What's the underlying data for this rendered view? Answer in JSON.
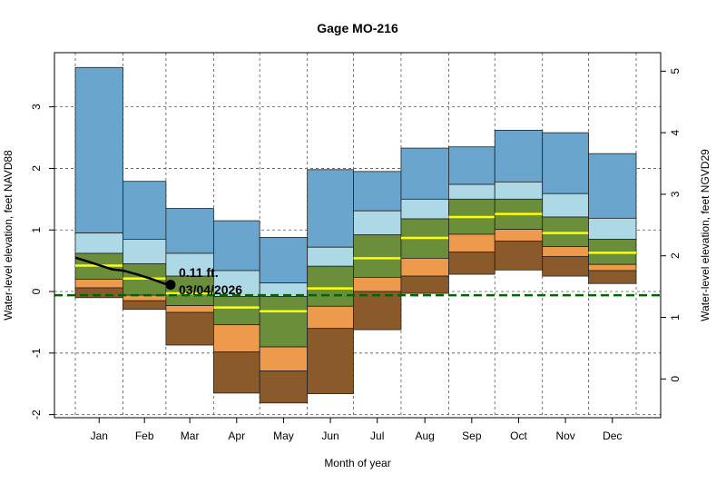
{
  "chart_data": {
    "type": "area",
    "title": "Gage MO-216",
    "xlabel": "Month of year",
    "ylabel": "Water-level elevation, feet NAVD88",
    "ylabel_right": "Water-level elevation, feet NGVD29",
    "ylim": [
      -2.05,
      3.88
    ],
    "yticks": [
      -2,
      -1,
      0,
      1,
      2,
      3
    ],
    "yticks_right": [
      0,
      1,
      2,
      3,
      4,
      5
    ],
    "right_axis_offset": 1.42,
    "grid": true,
    "categories": [
      "Jan",
      "Feb",
      "Mar",
      "Apr",
      "May",
      "Jun",
      "Jul",
      "Aug",
      "Sep",
      "Oct",
      "Nov",
      "Dec"
    ],
    "month_start_day": [
      1,
      32,
      60,
      91,
      121,
      152,
      182,
      213,
      244,
      274,
      305,
      335,
      366
    ],
    "bands": {
      "max": [
        3.64,
        1.79,
        1.35,
        1.15,
        0.88,
        1.98,
        1.95,
        2.33,
        2.35,
        2.62,
        2.58,
        2.24
      ],
      "p90": [
        0.95,
        0.85,
        0.62,
        0.34,
        0.14,
        0.72,
        1.31,
        1.5,
        1.74,
        1.78,
        1.59,
        1.19
      ],
      "p75": [
        0.62,
        0.45,
        0.25,
        -0.08,
        -0.08,
        0.41,
        0.92,
        1.18,
        1.5,
        1.5,
        1.21,
        0.85
      ],
      "median": [
        0.42,
        0.21,
        -0.03,
        -0.26,
        -0.32,
        0.05,
        0.54,
        0.87,
        1.21,
        1.26,
        0.95,
        0.63
      ],
      "p25": [
        0.2,
        -0.06,
        -0.23,
        -0.54,
        -0.9,
        -0.24,
        0.23,
        0.54,
        0.93,
        1.01,
        0.73,
        0.44
      ],
      "p10": [
        0.06,
        -0.15,
        -0.34,
        -0.98,
        -1.29,
        -0.6,
        0.0,
        0.25,
        0.64,
        0.82,
        0.57,
        0.34
      ],
      "min": [
        -0.1,
        -0.29,
        -0.87,
        -1.65,
        -1.81,
        -1.66,
        -0.62,
        -0.03,
        0.28,
        0.35,
        0.25,
        0.13
      ]
    },
    "band_colors": {
      "max": "#6aa5cd",
      "p90": "#add8e6",
      "p75": "#6b8e3a",
      "p25": "#ee9a4d",
      "p10": "#8b5a2b",
      "median": "#ffff00"
    },
    "reference_line": {
      "value": -0.06,
      "color": "#006400",
      "style": "dashed"
    },
    "current_series": {
      "color": "#000000",
      "points": [
        {
          "date": "01/01/2026",
          "value": 0.55
        },
        {
          "date": "01/10/2026",
          "value": 0.48
        },
        {
          "date": "01/20/2026",
          "value": 0.4
        },
        {
          "date": "01/25/2026",
          "value": 0.36
        },
        {
          "date": "02/01/2026",
          "value": 0.34
        },
        {
          "date": "02/10/2026",
          "value": 0.28
        },
        {
          "date": "02/20/2026",
          "value": 0.2
        },
        {
          "date": "03/01/2026",
          "value": 0.12
        },
        {
          "date": "03/04/2026",
          "value": 0.11
        }
      ]
    },
    "annotation": {
      "value_label": "0.11 ft.",
      "date_label": "03/04/2026"
    }
  }
}
